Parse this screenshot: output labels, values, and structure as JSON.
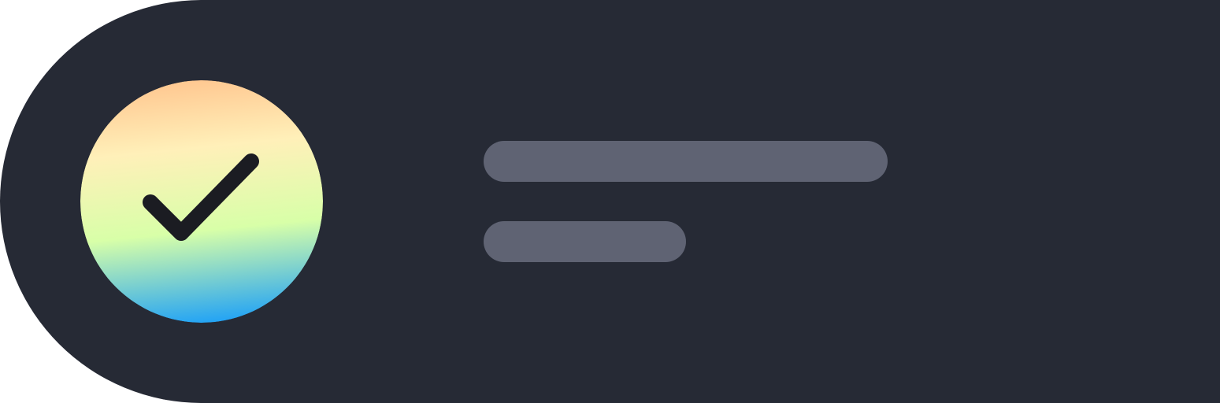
{
  "colors": {
    "card_background": "#262a35",
    "placeholder_line": "#5f6373",
    "check_stroke": "#1b1c22",
    "avatar_gradient": [
      "#ffc891",
      "#fff0b9",
      "#d8ffa8",
      "#22a3f5"
    ]
  },
  "icon": {
    "name": "checkmark-icon"
  }
}
